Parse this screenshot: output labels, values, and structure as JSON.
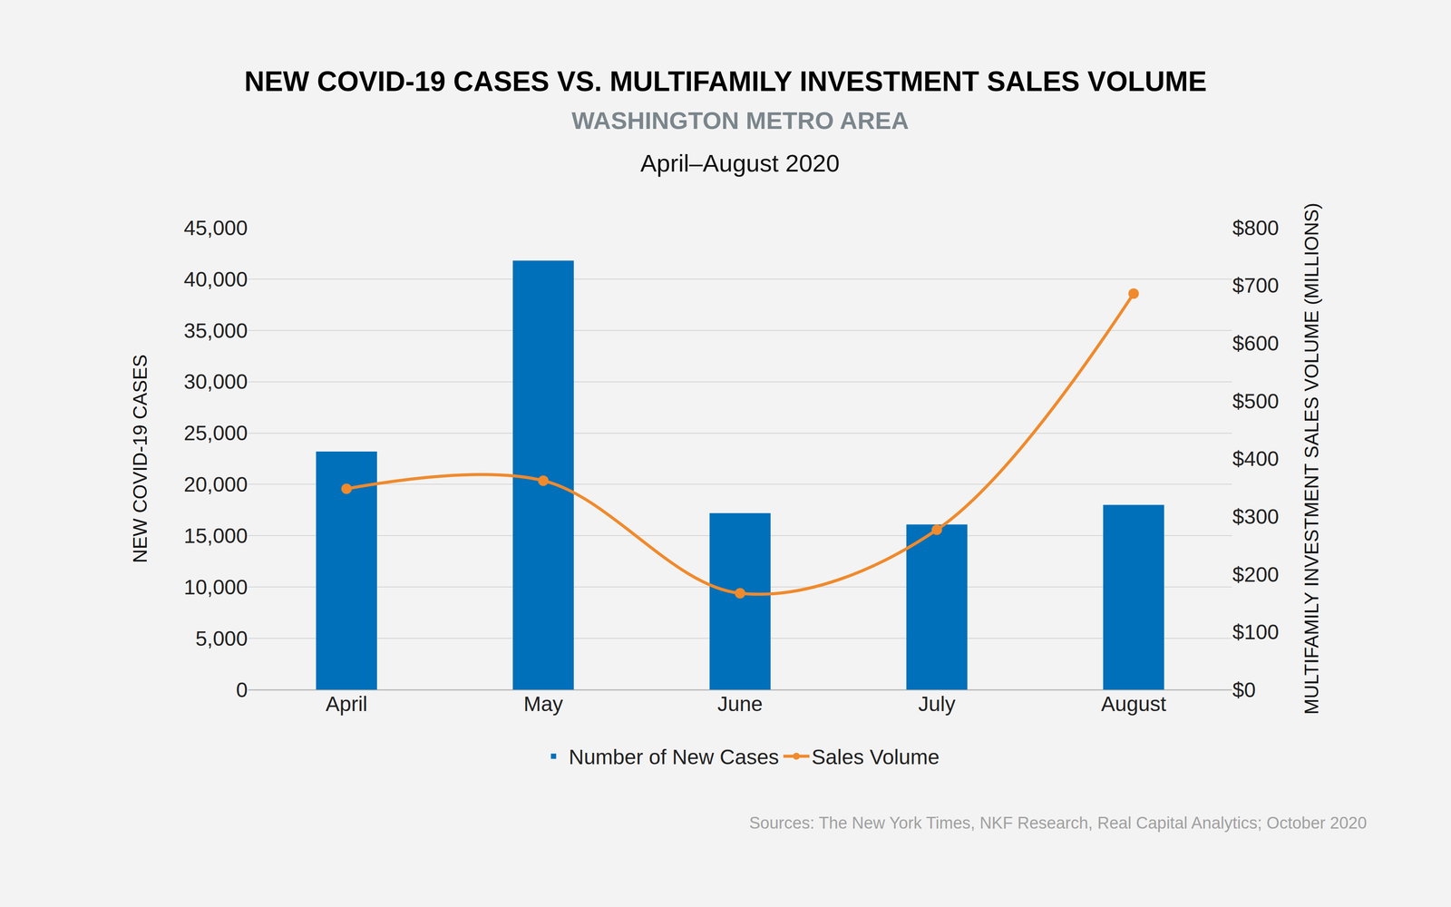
{
  "chart_data": {
    "type": "bar",
    "title": "NEW COVID-19 CASES VS. MULTIFAMILY INVESTMENT SALES VOLUME",
    "subtitle": "WASHINGTON METRO AREA",
    "annotations": [
      "April–August 2020",
      "Sources: The New York Times, NKF Research, Real Capital Analytics; October 2020"
    ],
    "y_label": "NEW COVID-19 CASES",
    "y2_label": "MULTIFAMILY INVESTMENT SALES VOLUME (MILLIONS)",
    "categories": [
      "April",
      "May",
      "June",
      "July",
      "August"
    ],
    "series": [
      {
        "name": "Number of New Cases",
        "type": "bar",
        "color": "#0070ba",
        "values": [
          23200,
          41800,
          17200,
          16100,
          18000
        ]
      },
      {
        "name": "Sales Volume",
        "type": "line",
        "axis": "y2",
        "color": "#f08a2c",
        "marker": "circle",
        "line_style": "smooth",
        "values": [
          348,
          362,
          167,
          277,
          686
        ]
      }
    ],
    "ylim": [
      0,
      45000
    ],
    "yticks": [
      0,
      {
        "value": 5000,
        "label": "5,000"
      },
      {
        "value": 10000,
        "label": "10,000"
      },
      {
        "value": 15000,
        "label": "15,000"
      },
      {
        "value": 20000,
        "label": "20,000"
      },
      {
        "value": 25000,
        "label": "25,000"
      },
      {
        "value": 30000,
        "label": "30,000"
      },
      {
        "value": 35000,
        "label": "35,000"
      },
      {
        "value": 40000,
        "label": "40,000"
      },
      {
        "value": 45000,
        "label": "45,000"
      }
    ],
    "y2lim": [
      0,
      800
    ],
    "y2ticks": [
      {
        "value": 0,
        "label": "$0"
      },
      {
        "value": 100,
        "label": "$100"
      },
      {
        "value": 200,
        "label": "$200"
      },
      {
        "value": 300,
        "label": "$300"
      },
      {
        "value": 400,
        "label": "$400"
      },
      {
        "value": 500,
        "label": "$500"
      },
      {
        "value": 600,
        "label": "$600"
      },
      {
        "value": 700,
        "label": "$700"
      },
      {
        "value": 800,
        "label": "$800"
      }
    ],
    "grid": true,
    "legend": "bottom"
  }
}
